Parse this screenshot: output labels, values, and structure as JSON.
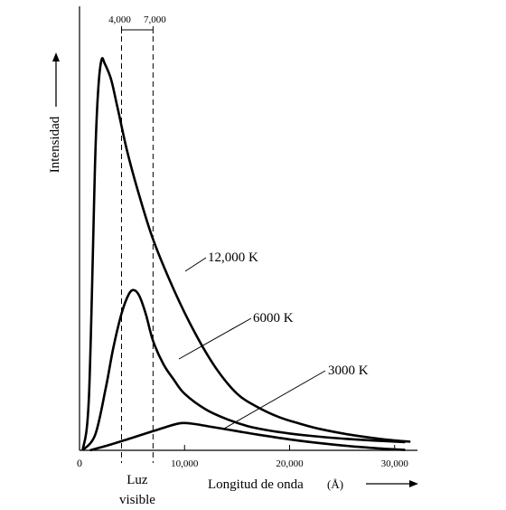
{
  "chart_data": {
    "type": "line",
    "xlabel": "Longitud de onda",
    "xlabel_unit": "(Å)",
    "ylabel": "Intensidad",
    "xlim": [
      0,
      32000
    ],
    "ylim": [
      0,
      100
    ],
    "grid": false,
    "origin_label": "0",
    "x_ticks": [
      {
        "value": 10000,
        "label": "10,000"
      },
      {
        "value": 20000,
        "label": "20,000"
      },
      {
        "value": 30000,
        "label": "30,000"
      }
    ],
    "visible_band": {
      "start": 4000,
      "end": 7000,
      "start_label": "4,000",
      "end_label": "7,000",
      "label_line1": "Luz",
      "label_line2": "visible"
    },
    "series": [
      {
        "name": "12,000 K",
        "x": [
          300,
          900,
          1500,
          1800,
          2100,
          2400,
          3000,
          3600,
          4500,
          5500,
          7000,
          9000,
          11000,
          13000,
          15000,
          17000,
          19000,
          21000,
          23000,
          26000,
          29000,
          31500
        ],
        "y": [
          0,
          14,
          75,
          93,
          100,
          99,
          95,
          88,
          77,
          67,
          54,
          41,
          30,
          21,
          14.5,
          11,
          8.5,
          6.8,
          5.4,
          3.9,
          2.8,
          2.2
        ]
      },
      {
        "name": "6000 K",
        "x": [
          300,
          1500,
          2500,
          3200,
          4000,
          4700,
          5200,
          5700,
          6300,
          7000,
          8000,
          9000,
          10000,
          12000,
          14000,
          16000,
          18000,
          20000,
          22000,
          25000,
          28000,
          31000
        ],
        "y": [
          0,
          4,
          16,
          26,
          35,
          40,
          41,
          39.5,
          35,
          28,
          22,
          18,
          14.5,
          10.5,
          8,
          6.2,
          5.1,
          4.3,
          3.7,
          3.0,
          2.5,
          2.1
        ]
      },
      {
        "name": "3000 K",
        "x": [
          1000,
          3000,
          5000,
          7000,
          8500,
          9500,
          10000,
          10500,
          11500,
          13000,
          15000,
          17000,
          20000,
          23000,
          26000,
          29000,
          31000
        ],
        "y": [
          0,
          1.5,
          3.2,
          4.9,
          6.2,
          6.9,
          7.0,
          6.9,
          6.5,
          5.8,
          4.9,
          4.0,
          2.8,
          1.8,
          1.0,
          0.4,
          0.1
        ]
      }
    ],
    "series_labels": [
      "12,000 K",
      "6000 K",
      "3000 K"
    ]
  }
}
